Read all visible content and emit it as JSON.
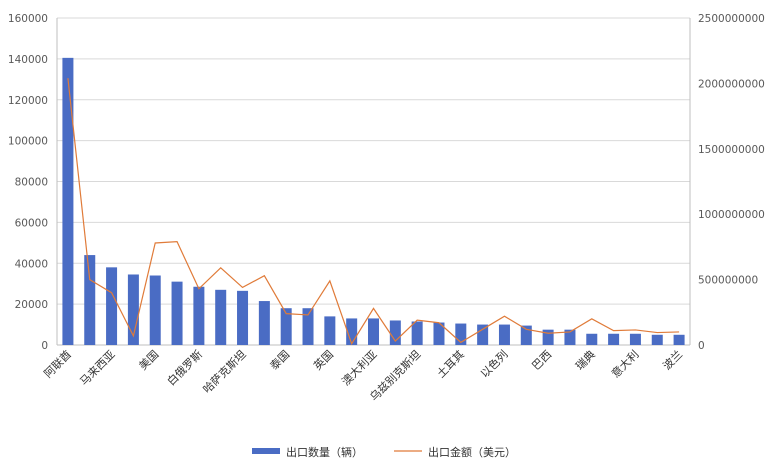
{
  "chart_data": {
    "type": "bar",
    "categories": [
      "阿联酋",
      "",
      "马来西亚",
      "",
      "美国",
      "",
      "白俄罗斯",
      "",
      "哈萨克斯坦",
      "",
      "泰国",
      "",
      "英国",
      "",
      "澳大利亚",
      "",
      "乌兹别克斯坦",
      "",
      "土耳其",
      "",
      "以色列",
      "",
      "巴西",
      "",
      "瑞典",
      "",
      "意大利",
      "",
      "波兰"
    ],
    "series": [
      {
        "name": "出口数量（辆）",
        "axis": "left",
        "kind": "bar",
        "values": [
          140500,
          44000,
          38000,
          34500,
          34000,
          31000,
          28500,
          27000,
          26500,
          21500,
          18000,
          18000,
          14000,
          13000,
          13000,
          12000,
          11500,
          11000,
          10500,
          10000,
          10000,
          9500,
          7500,
          7500,
          5500,
          5500,
          5500,
          5000,
          5000
        ]
      },
      {
        "name": "出口金额（美元）",
        "axis": "right",
        "kind": "line",
        "values": [
          2040000000,
          500000000,
          400000000,
          70000000,
          780000000,
          790000000,
          430000000,
          590000000,
          440000000,
          530000000,
          240000000,
          230000000,
          490000000,
          10000000,
          280000000,
          30000000,
          190000000,
          170000000,
          20000000,
          120000000,
          220000000,
          120000000,
          90000000,
          100000000,
          200000000,
          110000000,
          115000000,
          95000000,
          100000000
        ]
      }
    ],
    "yticks_left": [
      "0",
      "20000",
      "40000",
      "60000",
      "80000",
      "100000",
      "120000",
      "140000",
      "160000"
    ],
    "yticks_right": [
      "0",
      "500000000",
      "1000000000",
      "1500000000",
      "2000000000",
      "2500000000"
    ],
    "ylim_left": [
      0,
      160000
    ],
    "ylim_right": [
      0,
      2500000000
    ],
    "grid": true,
    "legend_position": "bottom",
    "colors": {
      "bar": "#4a6cc4",
      "line": "#e07b39",
      "grid": "#d9d9d9",
      "axis": "#bfbfbf"
    }
  }
}
